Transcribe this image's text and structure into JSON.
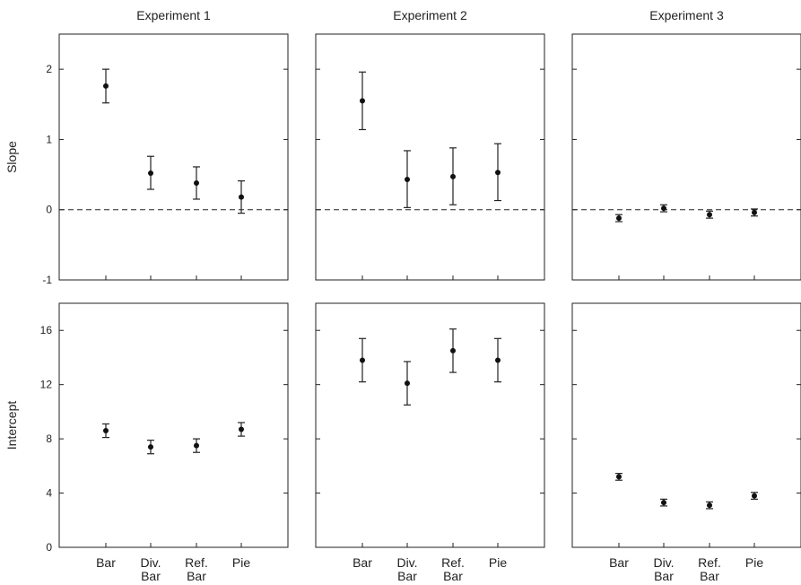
{
  "chart_data": {
    "type": "scatter",
    "categories": [
      [
        "Bar"
      ],
      [
        "Div.",
        "Bar"
      ],
      [
        "Ref.",
        "Bar"
      ],
      [
        "Pie"
      ]
    ],
    "column_titles": [
      "Experiment 1",
      "Experiment 2",
      "Experiment 3"
    ],
    "rows": [
      {
        "ylabel": "Slope",
        "ylim": [
          -1,
          2.5
        ],
        "yticks": [
          -1,
          0,
          1,
          2
        ],
        "zero_line": true,
        "panels": [
          {
            "values": [
              1.76,
              0.52,
              0.38,
              0.18
            ],
            "err_low": [
              1.52,
              0.29,
              0.15,
              -0.05
            ],
            "err_high": [
              2.0,
              0.76,
              0.61,
              0.41
            ]
          },
          {
            "values": [
              1.55,
              0.43,
              0.47,
              0.53
            ],
            "err_low": [
              1.14,
              0.03,
              0.07,
              0.13
            ],
            "err_high": [
              1.96,
              0.84,
              0.88,
              0.94
            ]
          },
          {
            "values": [
              -0.12,
              0.02,
              -0.07,
              -0.04
            ],
            "err_low": [
              -0.17,
              -0.03,
              -0.12,
              -0.09
            ],
            "err_high": [
              -0.07,
              0.07,
              -0.02,
              0.01
            ]
          }
        ]
      },
      {
        "ylabel": "Intercept",
        "ylim": [
          0,
          18
        ],
        "yticks": [
          0,
          4,
          8,
          12,
          16
        ],
        "zero_line": false,
        "panels": [
          {
            "values": [
              8.6,
              7.4,
              7.5,
              8.7
            ],
            "err_low": [
              8.1,
              6.9,
              7.0,
              8.2
            ],
            "err_high": [
              9.1,
              7.9,
              8.0,
              9.2
            ]
          },
          {
            "values": [
              13.8,
              12.1,
              14.5,
              13.8
            ],
            "err_low": [
              12.2,
              10.5,
              12.9,
              12.2
            ],
            "err_high": [
              15.4,
              13.7,
              16.1,
              15.4
            ]
          },
          {
            "values": [
              5.2,
              3.3,
              3.1,
              3.8
            ],
            "err_low": [
              4.95,
              3.05,
              2.85,
              3.55
            ],
            "err_high": [
              5.45,
              3.55,
              3.35,
              4.05
            ]
          }
        ]
      }
    ]
  }
}
